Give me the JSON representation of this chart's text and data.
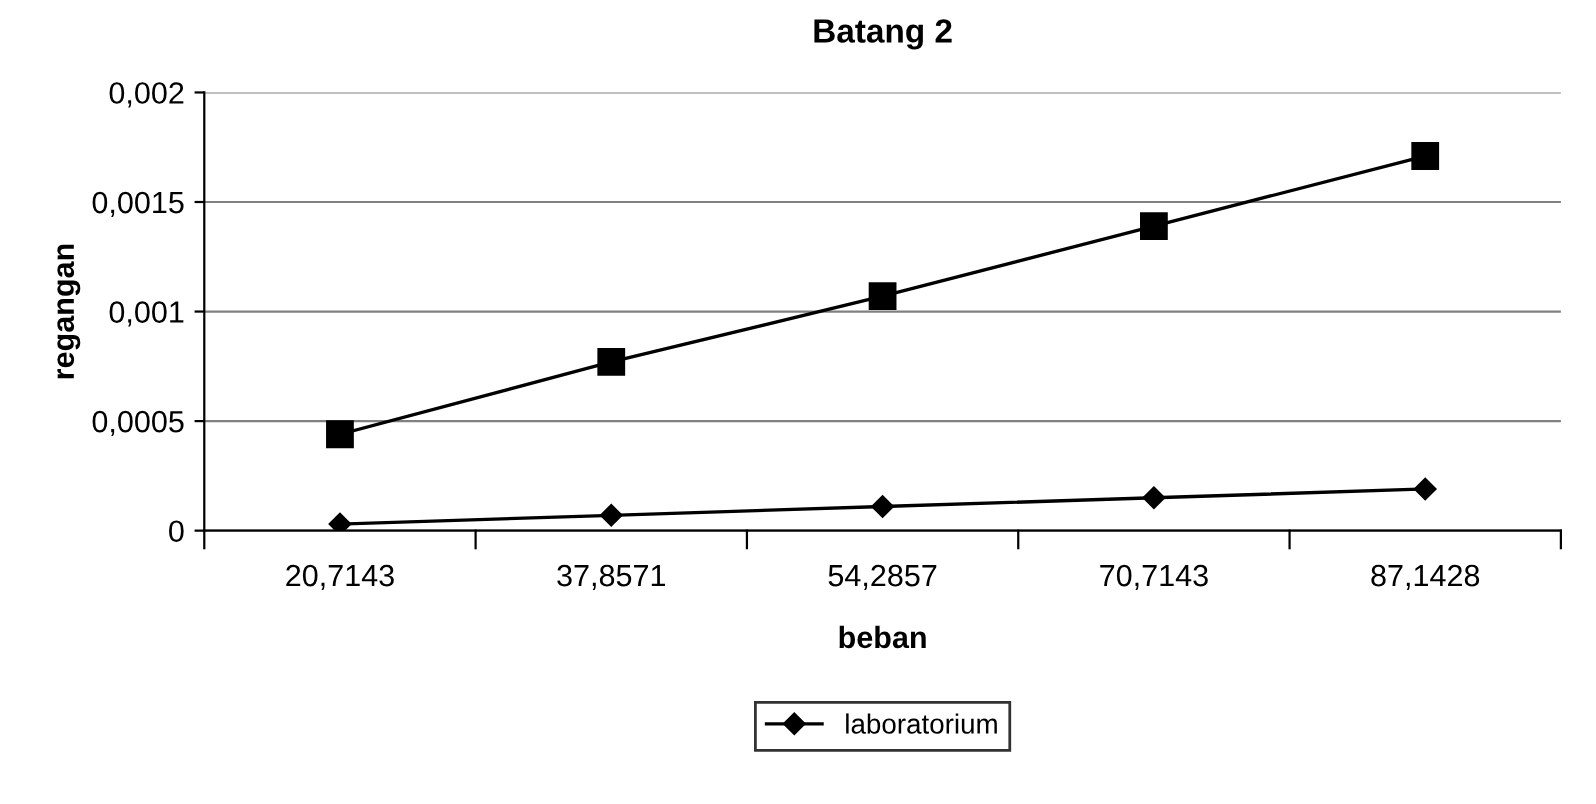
{
  "chart_data": {
    "type": "line",
    "title": "Batang 2",
    "xlabel": "beban",
    "ylabel": "regangan",
    "categories": [
      "20,7143",
      "37,8571",
      "54,2857",
      "70,7143",
      "87,1428"
    ],
    "series": [
      {
        "name": "laboratorium",
        "color": "#000000",
        "marker": "diamond",
        "values": [
          3e-05,
          7e-05,
          0.00011,
          0.00015,
          0.00019
        ]
      },
      {
        "color": "#000000",
        "marker": "square",
        "values": [
          0.00044,
          0.00077,
          0.00107,
          0.00139,
          0.00171
        ]
      }
    ],
    "ylim": [
      0,
      0.002
    ],
    "yticks": [
      {
        "value": 0,
        "label": "0"
      },
      {
        "value": 0.0005,
        "label": "0,0005"
      },
      {
        "value": 0.001,
        "label": "0,001"
      },
      {
        "value": 0.0015,
        "label": "0,0015"
      },
      {
        "value": 0.002,
        "label": "0,002"
      }
    ],
    "grid": "y",
    "legend": "bottom",
    "line_style": "solid"
  }
}
